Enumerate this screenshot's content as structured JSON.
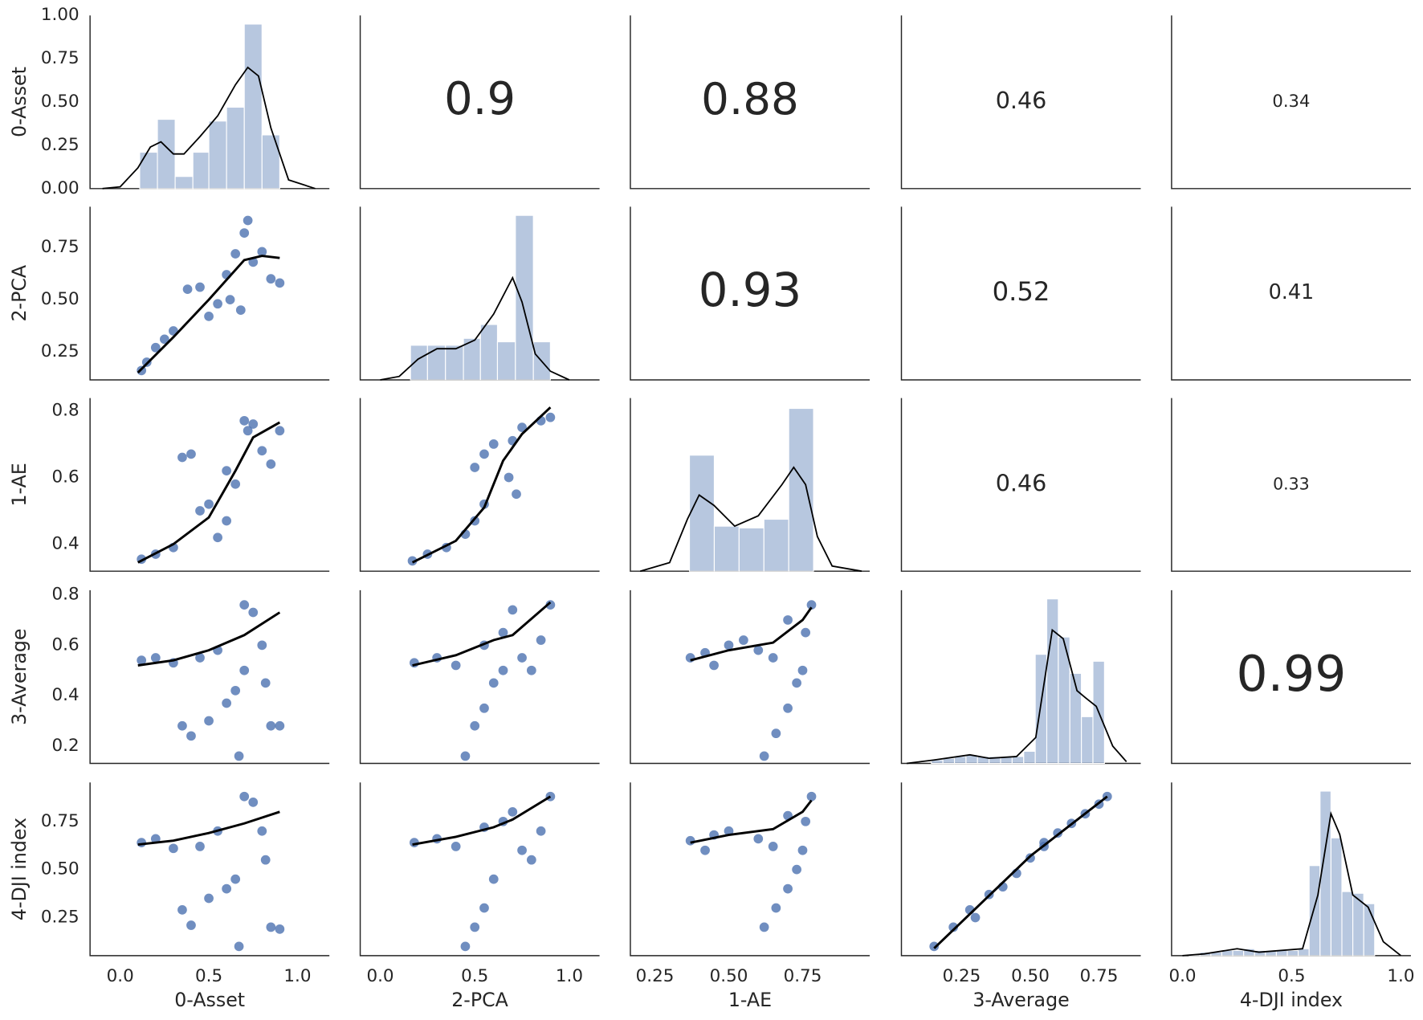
{
  "chart_data": {
    "type": "pairplot",
    "variables": [
      "0-Asset",
      "2-PCA",
      "1-AE",
      "3-Average",
      "4-DJI index"
    ],
    "point_color": "#4c72b0",
    "bar_color": "#4c72b0",
    "line_color": "#000000",
    "columns": [
      {
        "xlim": [
          -0.17,
          1.18
        ],
        "xticks": [
          {
            "value": 0,
            "label": "0.0"
          },
          0.5,
          {
            "value": 1,
            "label": "1.0"
          }
        ]
      },
      {
        "xlim": [
          -0.106,
          1.16
        ],
        "xticks": [
          {
            "value": 0,
            "label": "0.0"
          },
          0.5,
          {
            "value": 1,
            "label": "1.0"
          }
        ]
      },
      {
        "xlim": [
          0.167,
          0.977
        ],
        "xticks": [
          0.25,
          {
            "value": 0.5,
            "label": "0.50"
          },
          0.75
        ]
      },
      {
        "xlim": [
          0.031,
          0.902
        ],
        "xticks": [
          0.25,
          {
            "value": 0.5,
            "label": "0.50"
          },
          0.75
        ]
      },
      {
        "xlim": [
          -0.05,
          1.046
        ],
        "xticks": [
          {
            "value": 0,
            "label": "0.0"
          },
          0.5,
          {
            "value": 1,
            "label": "1.0"
          }
        ]
      }
    ],
    "rows": [
      {
        "ylim": [
          0,
          1
        ],
        "yticks": [
          {
            "value": 0,
            "label": "0.00"
          },
          0.25,
          {
            "value": 0.5,
            "label": "0.50"
          },
          0.75,
          {
            "value": 1,
            "label": "1.00"
          }
        ]
      },
      {
        "ylim": [
          0.115,
          0.946
        ],
        "yticks": [
          0.25,
          {
            "value": 0.5,
            "label": "0.50"
          },
          0.75
        ]
      },
      {
        "ylim": [
          0.319,
          0.838
        ],
        "yticks": [
          0.4,
          0.6,
          0.8
        ]
      },
      {
        "ylim": [
          0.131,
          0.818
        ],
        "yticks": [
          0.2,
          0.4,
          0.6,
          0.8
        ]
      },
      {
        "ylim": [
          0.052,
          0.953
        ],
        "yticks": [
          0.25,
          {
            "value": 0.5,
            "label": "0.50"
          },
          0.75
        ]
      }
    ],
    "panels": [
      [
        {
          "type": "hist",
          "bins": [
            0.11,
            0.21,
            0.31,
            0.41,
            0.5,
            0.6,
            0.7,
            0.8,
            0.9
          ],
          "values": [
            0.21,
            0.4,
            0.07,
            0.21,
            0.39,
            0.47,
            0.95,
            0.31
          ],
          "kde_x": [
            -0.1,
            0,
            0.1,
            0.17,
            0.23,
            0.3,
            0.36,
            0.45,
            0.55,
            0.65,
            0.72,
            0.78,
            0.85,
            0.95,
            1.1
          ],
          "kde_y": [
            0,
            0.01,
            0.12,
            0.24,
            0.27,
            0.2,
            0.2,
            0.3,
            0.42,
            0.6,
            0.7,
            0.65,
            0.35,
            0.05,
            0
          ]
        },
        {
          "type": "corr",
          "value": 0.9
        },
        {
          "type": "corr",
          "value": 0.88
        },
        {
          "type": "corr",
          "value": 0.46
        },
        {
          "type": "corr",
          "value": 0.34
        }
      ],
      [
        {
          "type": "scatter",
          "x": [
            0.12,
            0.15,
            0.2,
            0.25,
            0.3,
            0.38,
            0.45,
            0.5,
            0.55,
            0.6,
            0.62,
            0.65,
            0.7,
            0.72,
            0.75,
            0.8,
            0.85,
            0.9,
            0.68
          ],
          "y": [
            0.16,
            0.2,
            0.27,
            0.31,
            0.35,
            0.55,
            0.56,
            0.42,
            0.48,
            0.62,
            0.5,
            0.72,
            0.82,
            0.88,
            0.68,
            0.73,
            0.6,
            0.58,
            0.45
          ],
          "fit_x": [
            0.1,
            0.3,
            0.5,
            0.7,
            0.8,
            0.9
          ],
          "fit_y": [
            0.15,
            0.32,
            0.5,
            0.69,
            0.71,
            0.7
          ]
        },
        {
          "type": "hist",
          "bins": [
            0.16,
            0.25,
            0.345,
            0.44,
            0.53,
            0.62,
            0.715,
            0.81,
            0.9
          ],
          "values": [
            0.2,
            0.2,
            0.2,
            0.24,
            0.32,
            0.22,
            0.95,
            0.22
          ],
          "kde_x": [
            0,
            0.1,
            0.2,
            0.3,
            0.4,
            0.5,
            0.6,
            0.7,
            0.75,
            0.82,
            0.9,
            1.0
          ],
          "kde_y": [
            0,
            0.02,
            0.12,
            0.18,
            0.18,
            0.23,
            0.38,
            0.59,
            0.45,
            0.15,
            0.05,
            0
          ]
        },
        {
          "type": "corr",
          "value": 0.93
        },
        {
          "type": "corr",
          "value": 0.52
        },
        {
          "type": "corr",
          "value": 0.41
        }
      ],
      [
        {
          "type": "scatter",
          "x": [
            0.12,
            0.2,
            0.3,
            0.35,
            0.4,
            0.45,
            0.5,
            0.55,
            0.6,
            0.6,
            0.65,
            0.7,
            0.75,
            0.8,
            0.85,
            0.9,
            0.72
          ],
          "y": [
            0.355,
            0.37,
            0.39,
            0.66,
            0.67,
            0.5,
            0.52,
            0.42,
            0.47,
            0.62,
            0.58,
            0.77,
            0.76,
            0.68,
            0.64,
            0.74,
            0.74
          ],
          "fit_x": [
            0.1,
            0.3,
            0.5,
            0.65,
            0.75,
            0.9
          ],
          "fit_y": [
            0.345,
            0.4,
            0.48,
            0.62,
            0.72,
            0.765
          ]
        },
        {
          "type": "scatter",
          "x": [
            0.17,
            0.25,
            0.35,
            0.45,
            0.5,
            0.55,
            0.5,
            0.55,
            0.6,
            0.68,
            0.72,
            0.7,
            0.75,
            0.85,
            0.9
          ],
          "y": [
            0.35,
            0.37,
            0.39,
            0.43,
            0.47,
            0.52,
            0.63,
            0.67,
            0.7,
            0.6,
            0.55,
            0.71,
            0.75,
            0.77,
            0.78
          ],
          "fit_x": [
            0.17,
            0.4,
            0.55,
            0.65,
            0.75,
            0.9
          ],
          "fit_y": [
            0.345,
            0.41,
            0.51,
            0.65,
            0.73,
            0.81
          ]
        },
        {
          "type": "hist",
          "bins": [
            0.367,
            0.451,
            0.535,
            0.619,
            0.703,
            0.787
          ],
          "values": [
            0.67,
            0.26,
            0.25,
            0.3,
            0.94
          ],
          "kde_x": [
            0.2,
            0.3,
            0.36,
            0.4,
            0.45,
            0.52,
            0.6,
            0.68,
            0.72,
            0.76,
            0.8,
            0.85,
            0.95
          ],
          "kde_y": [
            0,
            0.05,
            0.3,
            0.44,
            0.38,
            0.26,
            0.32,
            0.5,
            0.6,
            0.5,
            0.2,
            0.03,
            0
          ]
        },
        {
          "type": "corr",
          "value": 0.46
        },
        {
          "type": "corr",
          "value": 0.33
        }
      ],
      [
        {
          "type": "scatter",
          "x": [
            0.12,
            0.2,
            0.3,
            0.35,
            0.4,
            0.45,
            0.5,
            0.55,
            0.6,
            0.65,
            0.67,
            0.7,
            0.75,
            0.8,
            0.85,
            0.9,
            0.82,
            0.7
          ],
          "y": [
            0.54,
            0.55,
            0.53,
            0.28,
            0.24,
            0.55,
            0.3,
            0.58,
            0.37,
            0.42,
            0.16,
            0.76,
            0.73,
            0.6,
            0.28,
            0.28,
            0.45,
            0.5
          ],
          "fit_x": [
            0.1,
            0.3,
            0.5,
            0.7,
            0.9
          ],
          "fit_y": [
            0.52,
            0.54,
            0.58,
            0.64,
            0.73
          ]
        },
        {
          "type": "scatter",
          "x": [
            0.18,
            0.3,
            0.4,
            0.45,
            0.5,
            0.55,
            0.6,
            0.55,
            0.65,
            0.7,
            0.75,
            0.8,
            0.85,
            0.9,
            0.65
          ],
          "y": [
            0.53,
            0.55,
            0.52,
            0.16,
            0.28,
            0.35,
            0.45,
            0.6,
            0.65,
            0.74,
            0.55,
            0.5,
            0.62,
            0.76,
            0.5
          ],
          "fit_x": [
            0.17,
            0.4,
            0.6,
            0.7,
            0.9
          ],
          "fit_y": [
            0.52,
            0.56,
            0.62,
            0.64,
            0.77
          ]
        },
        {
          "type": "scatter",
          "x": [
            0.37,
            0.42,
            0.5,
            0.55,
            0.6,
            0.65,
            0.62,
            0.66,
            0.7,
            0.73,
            0.75,
            0.76,
            0.78,
            0.7,
            0.45
          ],
          "y": [
            0.55,
            0.57,
            0.6,
            0.62,
            0.58,
            0.55,
            0.16,
            0.25,
            0.35,
            0.45,
            0.5,
            0.65,
            0.76,
            0.7,
            0.52
          ],
          "fit_x": [
            0.37,
            0.5,
            0.65,
            0.75,
            0.78
          ],
          "fit_y": [
            0.54,
            0.58,
            0.61,
            0.7,
            0.75
          ]
        },
        {
          "type": "hist",
          "bins": [
            0.14,
            0.182,
            0.224,
            0.266,
            0.308,
            0.35,
            0.392,
            0.434,
            0.476,
            0.518,
            0.56,
            0.602,
            0.644,
            0.686,
            0.728,
            0.77
          ],
          "values": [
            0.02,
            0.03,
            0.04,
            0.05,
            0.04,
            0.04,
            0.04,
            0.04,
            0.07,
            0.63,
            0.95,
            0.73,
            0.52,
            0.27,
            0.59
          ],
          "kde_x": [
            0.05,
            0.15,
            0.28,
            0.35,
            0.45,
            0.52,
            0.58,
            0.62,
            0.67,
            0.7,
            0.74,
            0.8,
            0.85
          ],
          "kde_y": [
            0,
            0.02,
            0.05,
            0.03,
            0.04,
            0.15,
            0.77,
            0.72,
            0.42,
            0.38,
            0.33,
            0.1,
            0.01
          ]
        },
        {
          "type": "corr",
          "value": 0.99
        }
      ],
      [
        {
          "type": "scatter",
          "x": [
            0.12,
            0.2,
            0.3,
            0.35,
            0.4,
            0.45,
            0.5,
            0.55,
            0.6,
            0.65,
            0.67,
            0.7,
            0.75,
            0.8,
            0.85,
            0.9,
            0.82
          ],
          "y": [
            0.64,
            0.66,
            0.61,
            0.29,
            0.21,
            0.62,
            0.35,
            0.7,
            0.4,
            0.45,
            0.1,
            0.88,
            0.85,
            0.7,
            0.2,
            0.19,
            0.55
          ],
          "fit_x": [
            0.1,
            0.3,
            0.5,
            0.7,
            0.9
          ],
          "fit_y": [
            0.63,
            0.65,
            0.69,
            0.74,
            0.8
          ]
        },
        {
          "type": "scatter",
          "x": [
            0.18,
            0.3,
            0.4,
            0.45,
            0.5,
            0.55,
            0.6,
            0.55,
            0.65,
            0.7,
            0.75,
            0.8,
            0.85,
            0.9
          ],
          "y": [
            0.64,
            0.66,
            0.62,
            0.1,
            0.2,
            0.3,
            0.45,
            0.72,
            0.75,
            0.8,
            0.6,
            0.55,
            0.7,
            0.88
          ],
          "fit_x": [
            0.17,
            0.4,
            0.6,
            0.7,
            0.9
          ],
          "fit_y": [
            0.63,
            0.67,
            0.72,
            0.76,
            0.88
          ]
        },
        {
          "type": "scatter",
          "x": [
            0.37,
            0.45,
            0.5,
            0.6,
            0.65,
            0.62,
            0.66,
            0.7,
            0.73,
            0.75,
            0.76,
            0.78,
            0.7,
            0.42
          ],
          "y": [
            0.65,
            0.68,
            0.7,
            0.66,
            0.62,
            0.2,
            0.3,
            0.4,
            0.5,
            0.6,
            0.75,
            0.88,
            0.78,
            0.6
          ],
          "fit_x": [
            0.37,
            0.5,
            0.65,
            0.75,
            0.78
          ],
          "fit_y": [
            0.64,
            0.68,
            0.71,
            0.8,
            0.86
          ]
        },
        {
          "type": "scatter",
          "x": [
            0.15,
            0.22,
            0.28,
            0.35,
            0.4,
            0.45,
            0.5,
            0.55,
            0.6,
            0.65,
            0.7,
            0.75,
            0.78,
            0.3,
            0.55
          ],
          "y": [
            0.1,
            0.2,
            0.29,
            0.37,
            0.41,
            0.48,
            0.56,
            0.64,
            0.69,
            0.74,
            0.79,
            0.84,
            0.88,
            0.25,
            0.62
          ],
          "fit_x": [
            0.15,
            0.5,
            0.78
          ],
          "fit_y": [
            0.09,
            0.57,
            0.88
          ]
        },
        {
          "type": "hist",
          "bins": [
            0.03,
            0.08,
            0.13,
            0.18,
            0.23,
            0.28,
            0.33,
            0.38,
            0.43,
            0.48,
            0.53,
            0.58,
            0.63,
            0.68,
            0.73,
            0.78,
            0.83,
            0.88
          ],
          "values": [
            0.01,
            0.02,
            0.02,
            0.03,
            0.03,
            0.04,
            0.03,
            0.03,
            0.03,
            0.03,
            0.04,
            0.52,
            0.95,
            0.68,
            0.37,
            0.36,
            0.3
          ],
          "kde_x": [
            0,
            0.1,
            0.25,
            0.35,
            0.55,
            0.62,
            0.68,
            0.72,
            0.78,
            0.85,
            0.92,
            1.0
          ],
          "kde_y": [
            0,
            0.01,
            0.04,
            0.02,
            0.04,
            0.35,
            0.82,
            0.7,
            0.35,
            0.28,
            0.08,
            0
          ]
        }
      ]
    ]
  }
}
